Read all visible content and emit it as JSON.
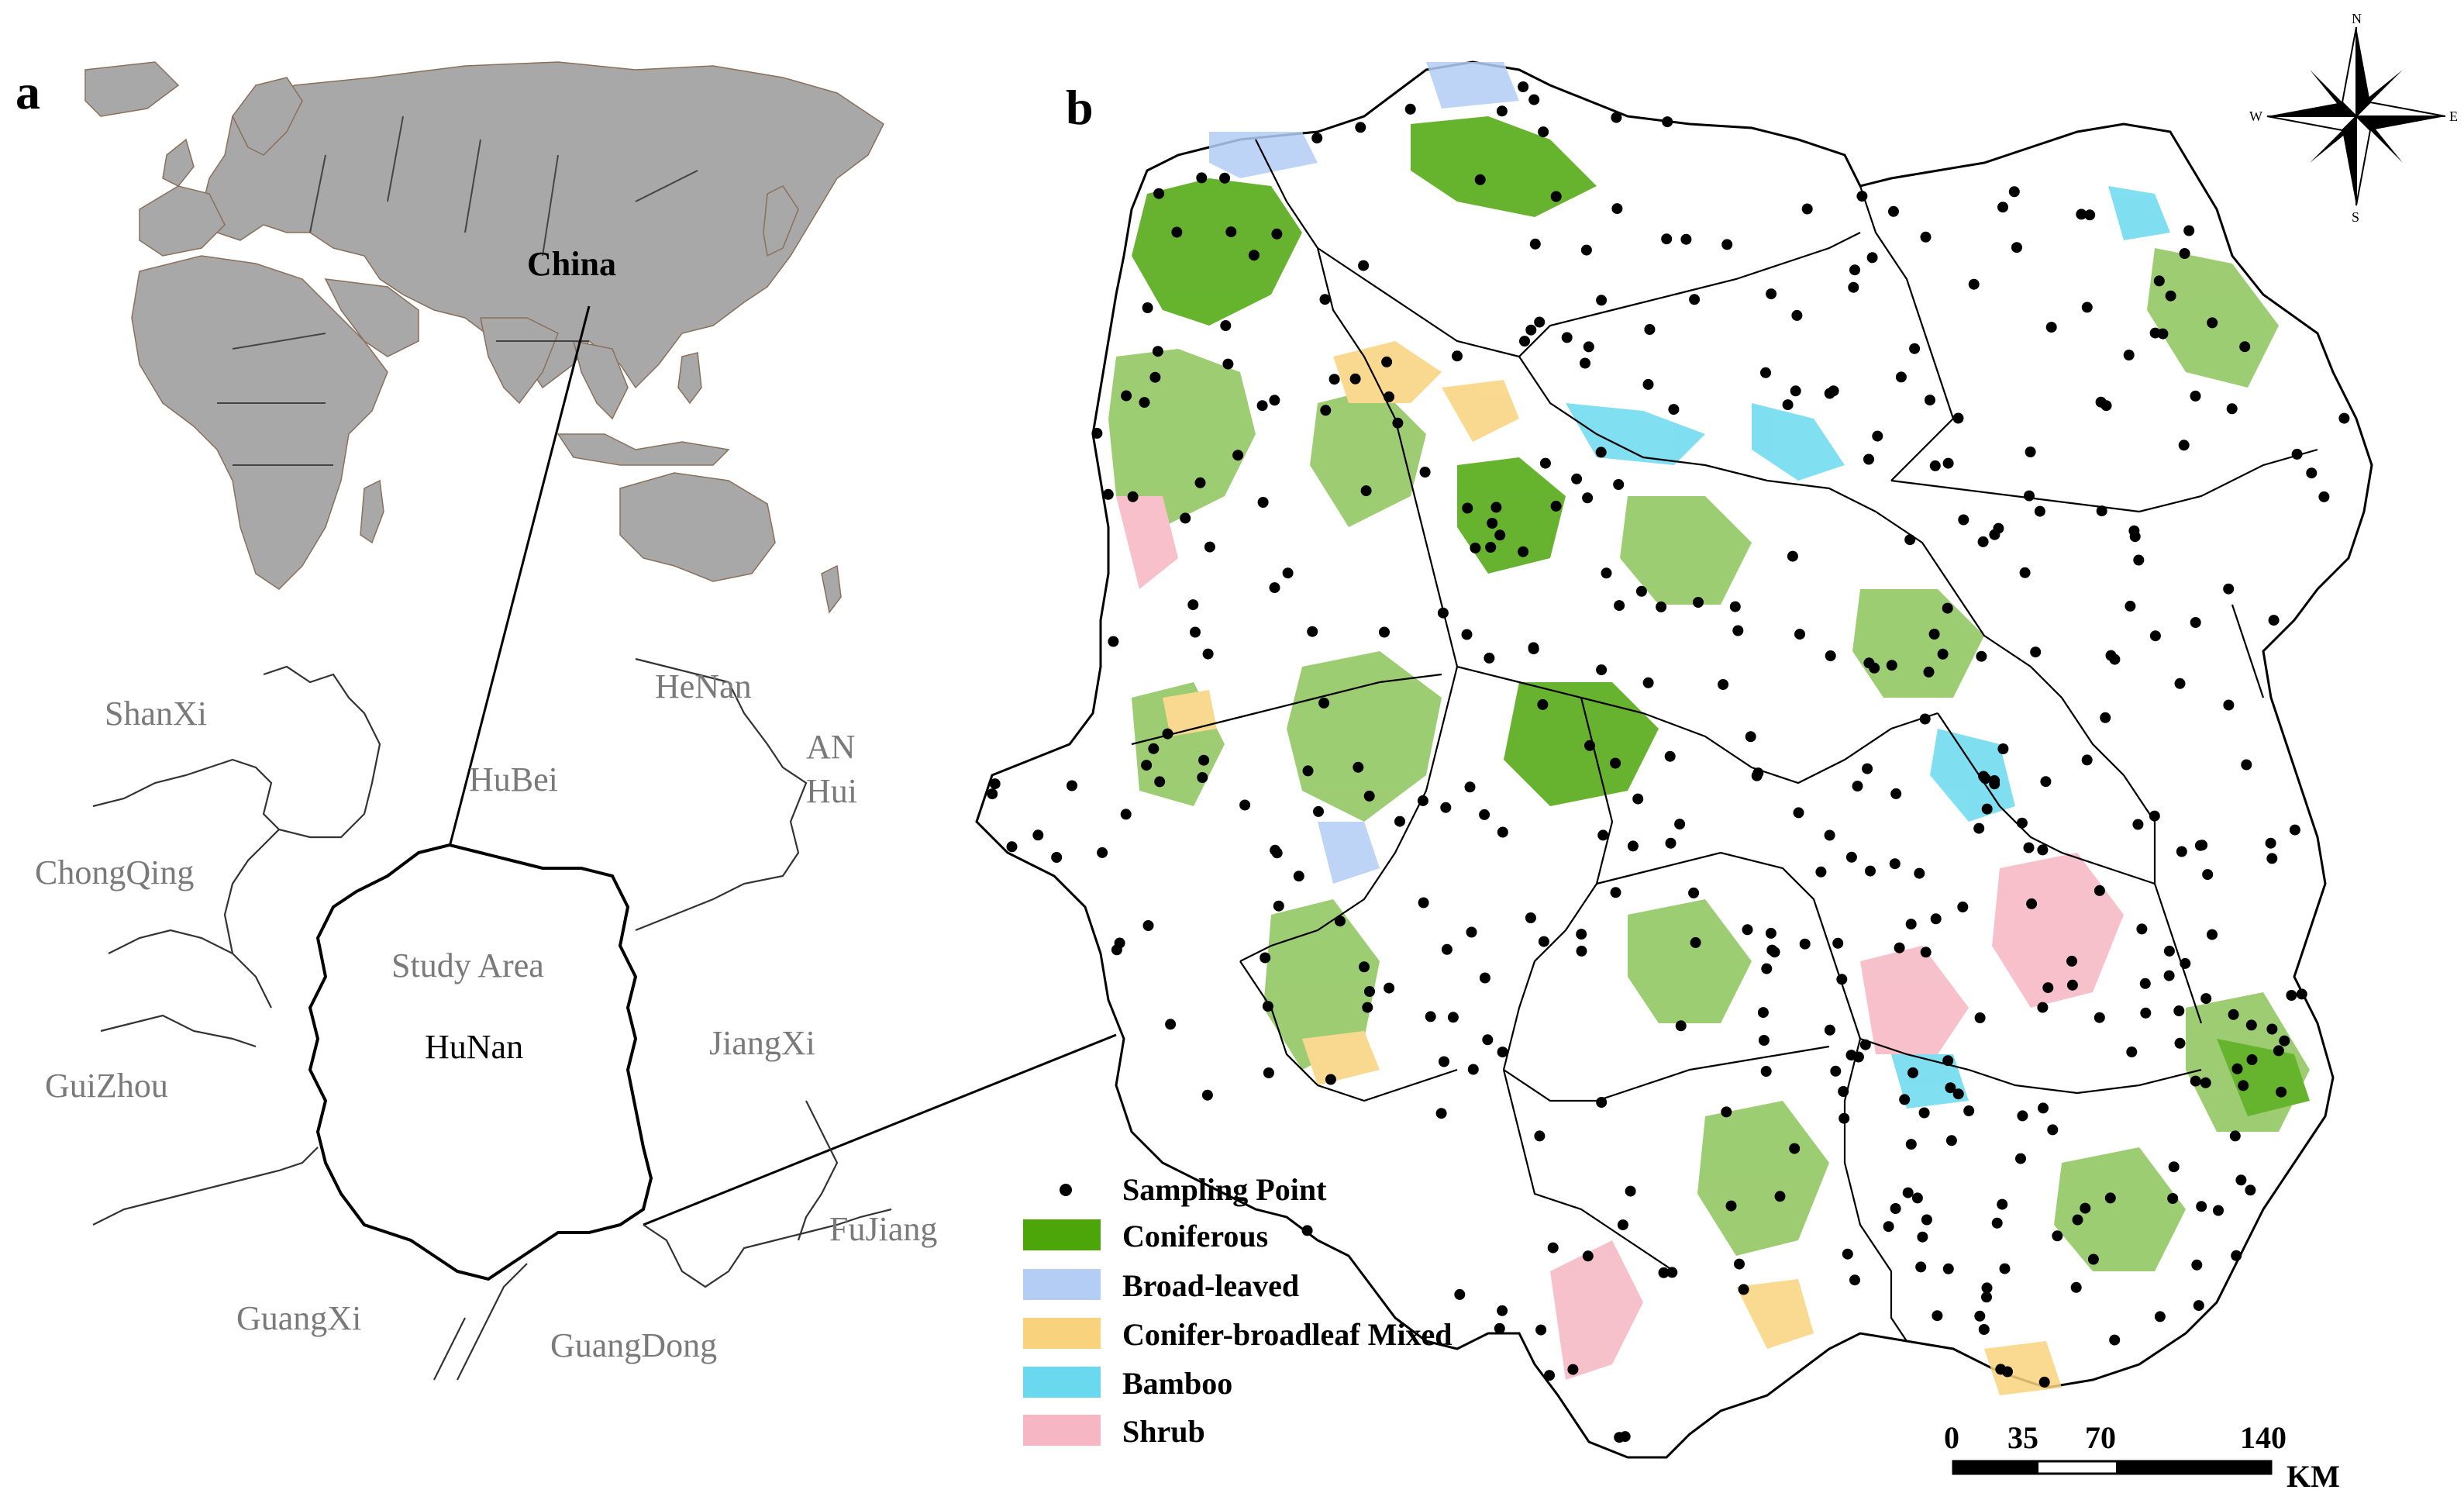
{
  "panel_a": {
    "label": "a",
    "world_label": "China",
    "provinces": {
      "shanxi": "ShanXi",
      "henan": "HeNan",
      "anhui_1": "AN",
      "anhui_2": "Hui",
      "hubei": "HuBei",
      "chongqing": "ChongQing",
      "study_area": "Study Area",
      "hunan": "HuNan",
      "jiangxi": "JiangXi",
      "guizhou": "GuiZhou",
      "fujian": "FuJiang",
      "guangxi": "GuangXi",
      "guangdong": "GuangDong"
    }
  },
  "panel_b": {
    "label": "b",
    "compass": {
      "n": "N",
      "s": "S",
      "e": "E",
      "w": "W"
    },
    "legend": [
      {
        "key": "sampling",
        "label": "Sampling Point",
        "color": "#000000",
        "symbol": "dot"
      },
      {
        "key": "coniferous",
        "label": "Coniferous",
        "color": "#4ca60a",
        "symbol": "box"
      },
      {
        "key": "broadleaved",
        "label": "Broad-leaved",
        "color": "#b3cdf5",
        "symbol": "box"
      },
      {
        "key": "mixed",
        "label": "Conifer-broadleaf Mixed",
        "color": "#f9d27d",
        "symbol": "box"
      },
      {
        "key": "bamboo",
        "label": "Bamboo",
        "color": "#6ad9ef",
        "symbol": "box"
      },
      {
        "key": "shrub",
        "label": "Shrub",
        "color": "#f6b6c3",
        "symbol": "box"
      }
    ],
    "scale_bar": {
      "ticks": [
        "0",
        "35",
        "70",
        "140"
      ],
      "unit": "KM"
    }
  }
}
